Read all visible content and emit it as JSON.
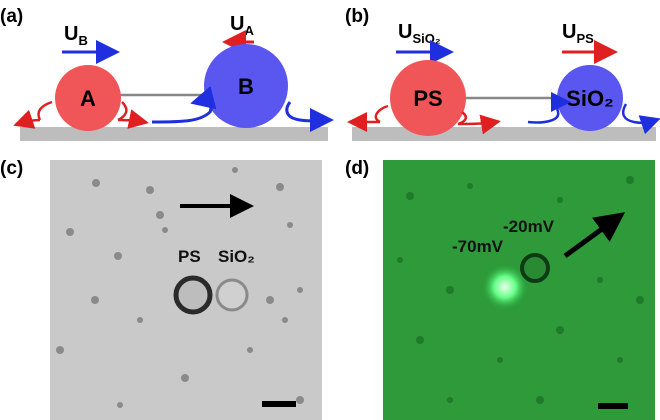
{
  "panel_a": {
    "label": "(a)",
    "velocity_b": {
      "symbol": "U",
      "subscript": "B"
    },
    "velocity_a": {
      "symbol": "U",
      "subscript": "A"
    },
    "particle_a": "A",
    "particle_b": "B"
  },
  "panel_b": {
    "label": "(b)",
    "velocity_sio2": {
      "symbol": "U",
      "subscript": "SiO₂"
    },
    "velocity_ps": {
      "symbol": "U",
      "subscript": "PS"
    },
    "particle_ps": "PS",
    "particle_sio2": "SiO₂"
  },
  "panel_c": {
    "label": "(c)",
    "particle_ps": "PS",
    "particle_sio2": "SiO₂"
  },
  "panel_d": {
    "label": "(d)",
    "zeta_ps": "-70mV",
    "zeta_sio2": "-20mV"
  }
}
